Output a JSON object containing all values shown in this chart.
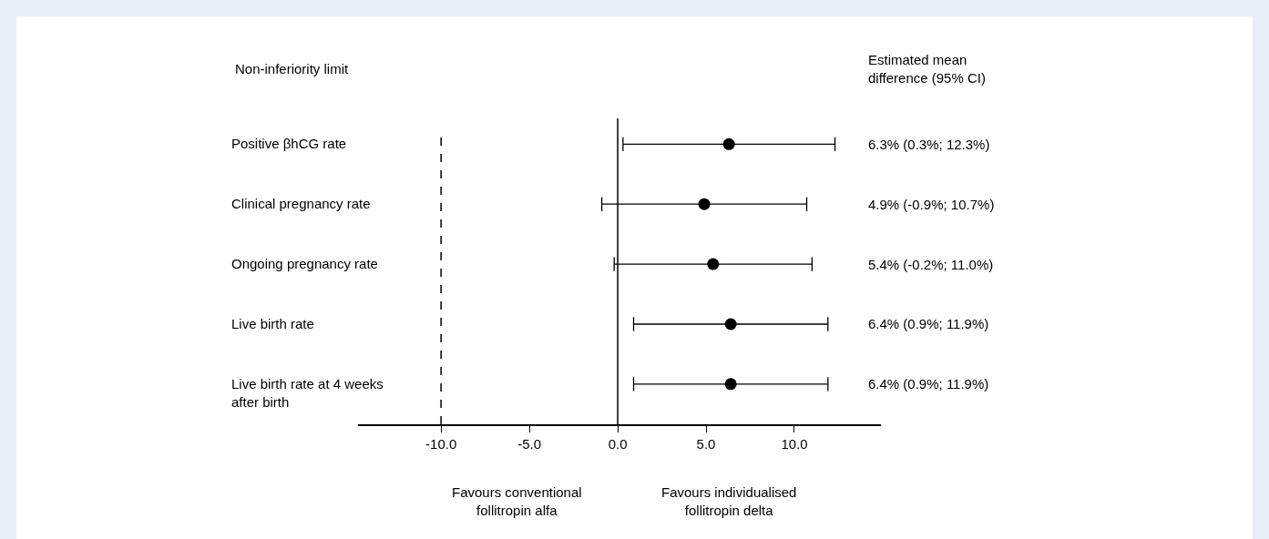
{
  "chart_data": {
    "type": "scatter",
    "orientation": "horizontal",
    "categories": [
      "Positive βhCG rate",
      "Clinical pregnancy rate",
      "Ongoing pregnancy rate",
      "Live birth rate",
      "Live birth rate at 4 weeks after birth"
    ],
    "values": [
      6.3,
      4.9,
      5.4,
      6.4,
      6.4
    ],
    "errors": [
      [
        0.3,
        12.3
      ],
      [
        -0.9,
        10.7
      ],
      [
        -0.2,
        11.0
      ],
      [
        0.9,
        11.9
      ],
      [
        0.9,
        11.9
      ]
    ],
    "value_labels": [
      "6.3% (0.3%; 12.3%)",
      "4.9% (-0.9%; 10.7%)",
      "5.4% (-0.2%; 11.0%)",
      "6.4% (0.9%; 11.9%)",
      "6.4% (0.9%; 11.9%)"
    ],
    "color": "#000000",
    "marker": "circle",
    "grid": false,
    "legend": false,
    "xlim": [
      -14.7,
      14.9
    ],
    "xticks": [
      {
        "value": -10,
        "label": "-10.0"
      },
      {
        "value": -5,
        "label": "-5.0"
      },
      {
        "value": 0,
        "label": "0.0"
      },
      {
        "value": 5,
        "label": "5.0"
      },
      {
        "value": 10,
        "label": "10.0"
      }
    ],
    "ref_lines": [
      {
        "axis": "x",
        "value": -10,
        "label": "Non-inferiority limit",
        "line_style": "dashed",
        "color": "#000000"
      },
      {
        "axis": "x",
        "value": 0,
        "label": null,
        "line_style": "solid",
        "color": "#000000"
      }
    ],
    "annotations": [
      "Estimated mean difference (95% CI)",
      "Favours conventional follitropin alfa",
      "Favours individualised follitropin delta"
    ]
  }
}
